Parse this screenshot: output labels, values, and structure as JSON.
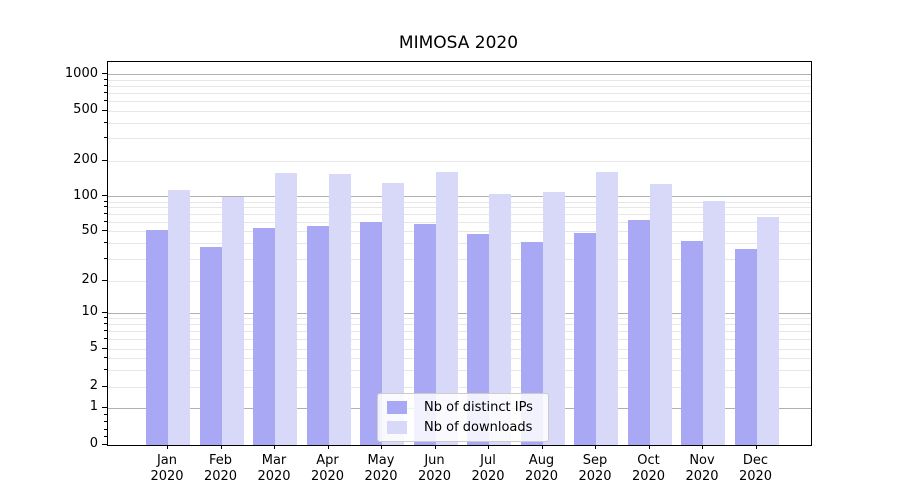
{
  "title": "MIMOSA 2020",
  "chart_data": {
    "type": "bar",
    "title": "MIMOSA 2020",
    "categories": [
      "Jan 2020",
      "Feb 2020",
      "Mar 2020",
      "Apr 2020",
      "May 2020",
      "Jun 2020",
      "Jul 2020",
      "Aug 2020",
      "Sep 2020",
      "Oct 2020",
      "Nov 2020",
      "Dec 2020"
    ],
    "series": [
      {
        "name": "Nb of distinct IPs",
        "color": "#a8a8f4",
        "values": [
          52,
          38,
          54,
          56,
          61,
          58,
          48,
          41,
          49,
          63,
          42,
          36
        ]
      },
      {
        "name": "Nb of downloads",
        "color": "#d8d8f8",
        "values": [
          115,
          100,
          159,
          156,
          130,
          162,
          106,
          110,
          163,
          127,
          91,
          67
        ]
      }
    ],
    "xlabel": "",
    "ylabel": "",
    "yscale": "symlog",
    "ylim": [
      0,
      1000
    ],
    "y_tick_labels": [
      "0",
      "1",
      "2",
      "5",
      "10",
      "20",
      "50",
      "100",
      "200",
      "500",
      "1000"
    ],
    "y_tick_values": [
      0,
      1,
      2,
      5,
      10,
      20,
      50,
      100,
      200,
      500,
      1000
    ],
    "grid": "on",
    "legend_position": "lower center"
  },
  "colors": {
    "major_grid": "#b0b0b0",
    "minor_grid": "#e7e7e7",
    "spine": "#000000",
    "legend_border": "#cccccc"
  }
}
